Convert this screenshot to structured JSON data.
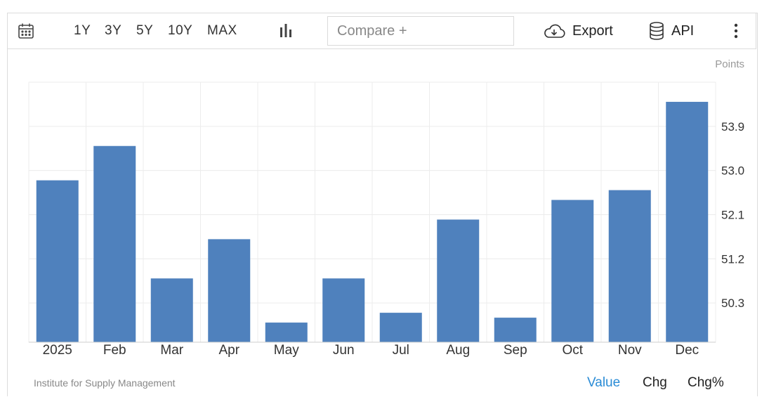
{
  "toolbar": {
    "calendar_icon": "calendar-icon",
    "ranges": [
      "1Y",
      "3Y",
      "5Y",
      "10Y",
      "MAX"
    ],
    "chart_type_icon": "bar-chart-icon",
    "compare_placeholder": "Compare +",
    "export_label": "Export",
    "export_icon": "cloud-download-icon",
    "api_label": "API",
    "api_icon": "database-icon",
    "more_icon": "more-vertical-icon"
  },
  "unit_label": "Points",
  "source": "Institute for Supply Management",
  "value_tabs": [
    "Value",
    "Chg",
    "Chg%"
  ],
  "colors": {
    "bar": "#4f81bd",
    "active_tab": "#2a8cd6",
    "grid": "#ececec"
  },
  "chart_data": {
    "type": "bar",
    "categories": [
      "2025",
      "Feb",
      "Mar",
      "Apr",
      "May",
      "Jun",
      "Jul",
      "Aug",
      "Sep",
      "Oct",
      "Nov",
      "Dec"
    ],
    "values": [
      52.8,
      53.5,
      50.8,
      51.6,
      49.9,
      50.8,
      50.1,
      52.0,
      50.0,
      52.4,
      52.6,
      54.4
    ],
    "yticks": [
      50.3,
      51.2,
      52.1,
      53.0,
      53.9
    ],
    "ylim": [
      49.5,
      54.8
    ],
    "axis_position": "right",
    "grid": true
  }
}
